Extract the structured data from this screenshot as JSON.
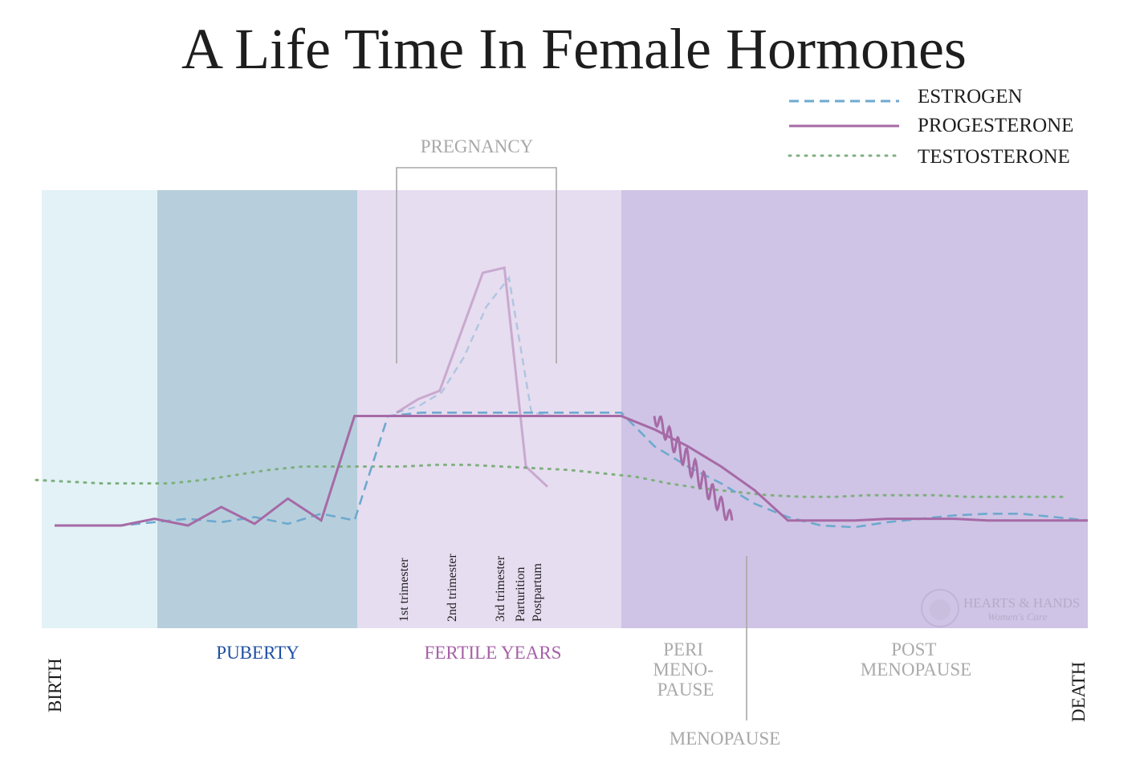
{
  "chart_data": {
    "type": "line",
    "title": "A Life Time In Female Hormones",
    "legend": {
      "placement": "top-right",
      "entries": [
        {
          "name": "ESTROGEN",
          "color": "#6ea9cf",
          "style": "dashed"
        },
        {
          "name": "PROGESTERONE",
          "color": "#a66aa6",
          "style": "solid"
        },
        {
          "name": "TESTOSTERONE",
          "color": "#7fb07f",
          "style": "dotted"
        }
      ]
    },
    "stages": [
      {
        "label": "BIRTH",
        "color": "#1b1b1b",
        "orientation": "vertical"
      },
      {
        "label": "PUBERTY",
        "color": "#1f4fa3"
      },
      {
        "label": "FERTILE YEARS",
        "color": "#a661a6"
      },
      {
        "label": "PERI MENO- PAUSE",
        "lines": [
          "PERI",
          "MENO-",
          "PAUSE"
        ],
        "color": "#aaaaaa"
      },
      {
        "label": "POST MENOPAUSE",
        "lines": [
          "POST",
          "MENOPAUSE"
        ],
        "color": "#aaaaaa"
      },
      {
        "label": "DEATH",
        "color": "#1b1b1b",
        "orientation": "vertical"
      }
    ],
    "band_colors": [
      "#e2f2f6",
      "#b7cfdc",
      "#e6ddf0",
      "#cfc4e5"
    ],
    "pregnancy": {
      "label": "PREGNANCY",
      "phases": [
        "1st trimester",
        "2nd trimester",
        "3rd trimester",
        "Parturition",
        "Postpartum"
      ]
    },
    "annotations": [
      "MENOPAUSE"
    ],
    "grid": false,
    "ylim": [
      0,
      100
    ],
    "series": [
      {
        "name": "ESTROGEN",
        "values": [
          5,
          5,
          5,
          7,
          9,
          7,
          10,
          6,
          12,
          8,
          70,
          72,
          72,
          72,
          72,
          72,
          72,
          72,
          52,
          40,
          30,
          18,
          10,
          5,
          4,
          7,
          9,
          11,
          12,
          12,
          10,
          8
        ]
      },
      {
        "name": "PROGESTERONE",
        "values": [
          5,
          5,
          5,
          9,
          5,
          16,
          6,
          21,
          8,
          70,
          70,
          70,
          70,
          70,
          70,
          70,
          70,
          70,
          62,
          52,
          40,
          26,
          8,
          8,
          8,
          9,
          9,
          9,
          8,
          8,
          8,
          8
        ]
      },
      {
        "name": "TESTOSTERONE",
        "values": [
          32,
          31,
          30,
          30,
          30,
          32,
          35,
          38,
          40,
          40,
          40,
          40,
          41,
          41,
          40,
          39,
          38,
          36,
          34,
          30,
          27,
          25,
          23,
          22,
          22,
          23,
          23,
          23,
          22,
          22,
          22,
          22
        ]
      }
    ],
    "pregnancy_series": [
      {
        "name": "ESTROGEN",
        "values": [
          72,
          76,
          84,
          105,
          135,
          152,
          72,
          70
        ]
      },
      {
        "name": "PROGESTERONE",
        "values": [
          72,
          80,
          85,
          120,
          155,
          158,
          40,
          28
        ]
      }
    ],
    "logo": {
      "name": "HEARTS & HANDS",
      "tagline": "Women's Care"
    }
  }
}
